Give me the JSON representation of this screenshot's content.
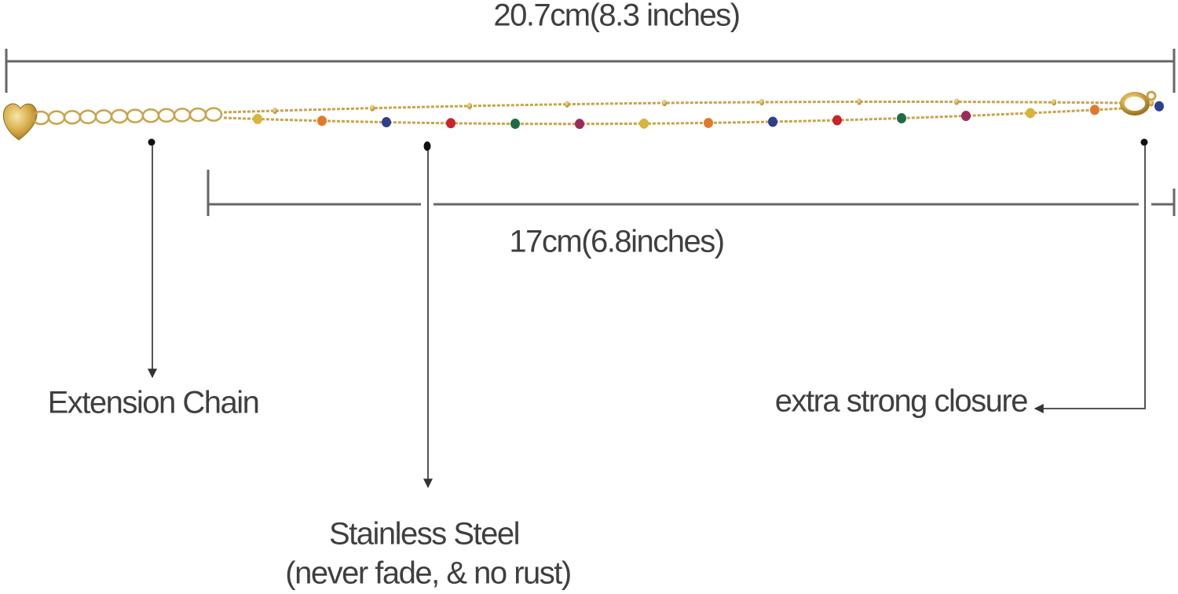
{
  "dimensions": {
    "total_length": "20.7cm(8.3 inches)",
    "main_length": "17cm(6.8inches)"
  },
  "callouts": [
    {
      "label": "Extension Chain"
    },
    {
      "label": "Stainless Steel",
      "note": "(never fade, & no rust)"
    },
    {
      "label": "extra strong closure"
    }
  ]
}
